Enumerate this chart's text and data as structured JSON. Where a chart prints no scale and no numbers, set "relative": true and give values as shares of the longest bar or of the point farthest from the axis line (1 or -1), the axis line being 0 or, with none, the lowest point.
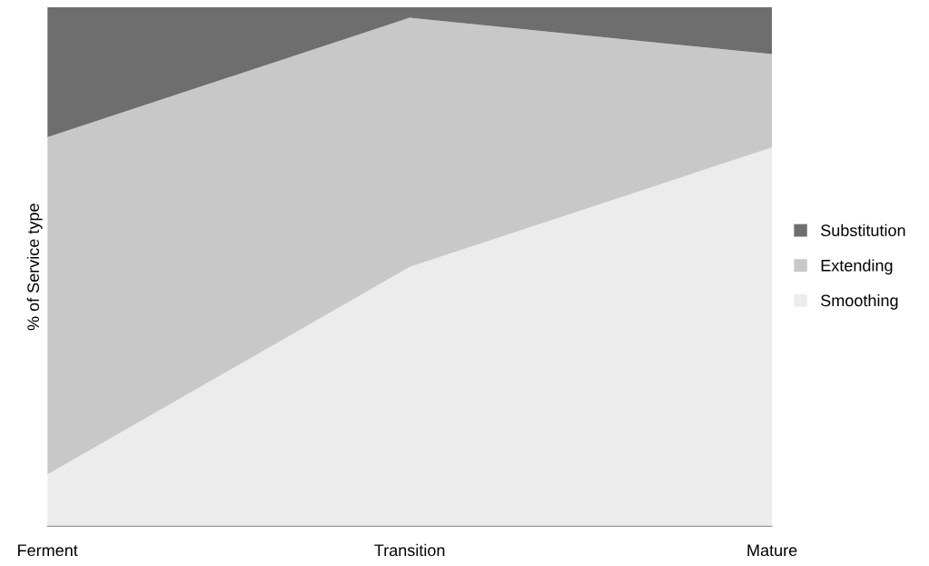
{
  "chart_data": {
    "type": "area",
    "stacked": true,
    "relative": true,
    "ylabel": "% of Service type",
    "categories": [
      "Ferment",
      "Transition",
      "Mature"
    ],
    "series": [
      {
        "name": "Smoothing",
        "color": "#ececec",
        "values": [
          0.1,
          0.5,
          0.73
        ]
      },
      {
        "name": "Extending",
        "color": "#c8c8c8",
        "values": [
          0.65,
          0.48,
          0.18
        ]
      },
      {
        "name": "Substitution",
        "color": "#6e6e6e",
        "values": [
          0.25,
          0.02,
          0.09
        ]
      }
    ],
    "legend": "right",
    "grid": false
  }
}
